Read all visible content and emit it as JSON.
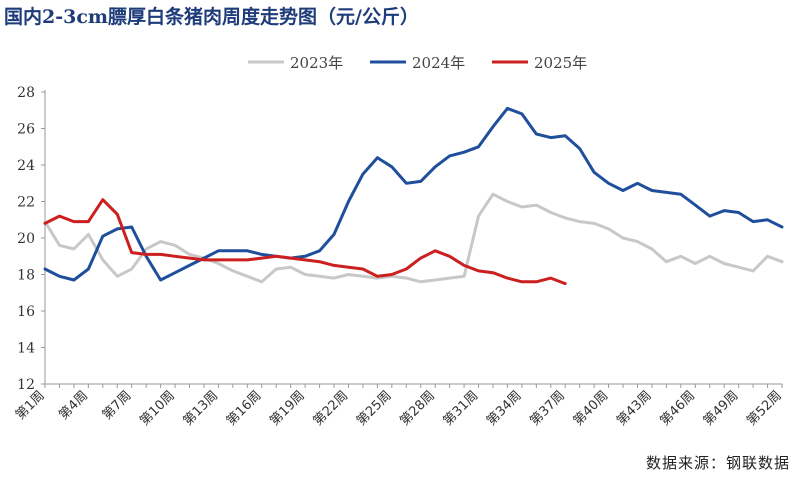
{
  "title": "国内2-3cm膘厚白条猪肉周度走势图（元/公斤）",
  "source": "数据来源：钢联数据",
  "chart_data": {
    "type": "line",
    "ylim": [
      12,
      28
    ],
    "y_ticks": [
      12,
      14,
      16,
      18,
      20,
      22,
      24,
      26,
      28
    ],
    "x_count": 52,
    "x_tick_labels": [
      {
        "week": 1,
        "label": "第1周"
      },
      {
        "week": 4,
        "label": "第4周"
      },
      {
        "week": 7,
        "label": "第7周"
      },
      {
        "week": 10,
        "label": "第10周"
      },
      {
        "week": 13,
        "label": "第13周"
      },
      {
        "week": 16,
        "label": "第16周"
      },
      {
        "week": 19,
        "label": "第19周"
      },
      {
        "week": 22,
        "label": "第22周"
      },
      {
        "week": 25,
        "label": "第25周"
      },
      {
        "week": 28,
        "label": "第28周"
      },
      {
        "week": 31,
        "label": "第31周"
      },
      {
        "week": 34,
        "label": "第34周"
      },
      {
        "week": 37,
        "label": "第37周"
      },
      {
        "week": 40,
        "label": "第40周"
      },
      {
        "week": 43,
        "label": "第43周"
      },
      {
        "week": 46,
        "label": "第46周"
      },
      {
        "week": 49,
        "label": "第49周"
      },
      {
        "week": 52,
        "label": "第52周"
      }
    ],
    "legend_position": "top-center",
    "series": [
      {
        "name": "2023年",
        "color": "#c8c8c8",
        "values": [
          20.9,
          19.6,
          19.4,
          20.2,
          18.8,
          17.9,
          18.3,
          19.4,
          19.8,
          19.6,
          19.1,
          18.9,
          18.6,
          18.2,
          17.9,
          17.6,
          18.3,
          18.4,
          18.0,
          17.9,
          17.8,
          18.0,
          17.9,
          17.8,
          17.9,
          17.8,
          17.6,
          17.7,
          17.8,
          17.9,
          21.2,
          22.4,
          22.0,
          21.7,
          21.8,
          21.4,
          21.1,
          20.9,
          20.8,
          20.5,
          20.0,
          19.8,
          19.4,
          18.7,
          19.0,
          18.6,
          19.0,
          18.6,
          18.4,
          18.2,
          19.0,
          18.7
        ]
      },
      {
        "name": "2024年",
        "color": "#1f4e9c",
        "values": [
          18.3,
          17.9,
          17.7,
          18.3,
          20.1,
          20.5,
          20.6,
          19.0,
          17.7,
          18.1,
          18.5,
          18.9,
          19.3,
          19.3,
          19.3,
          19.1,
          19.0,
          18.9,
          19.0,
          19.3,
          20.2,
          22.0,
          23.5,
          24.4,
          23.9,
          23.0,
          23.1,
          23.9,
          24.5,
          24.7,
          25.0,
          26.1,
          27.1,
          26.8,
          25.7,
          25.5,
          25.6,
          24.9,
          23.6,
          23.0,
          22.6,
          23.0,
          22.6,
          22.5,
          22.4,
          21.8,
          21.2,
          21.5,
          21.4,
          20.9,
          21.0,
          20.6
        ]
      },
      {
        "name": "2025年",
        "color": "#cc1f1f",
        "values": [
          20.8,
          21.2,
          20.9,
          20.9,
          22.1,
          21.3,
          19.2,
          19.1,
          19.1,
          19.0,
          18.9,
          18.8,
          18.8,
          18.8,
          18.8,
          18.9,
          19.0,
          18.9,
          18.8,
          18.7,
          18.5,
          18.4,
          18.3,
          17.9,
          18.0,
          18.3,
          18.9,
          19.3,
          19.0,
          18.5,
          18.2,
          18.1,
          17.8,
          17.6,
          17.6,
          17.8,
          17.5
        ]
      }
    ]
  }
}
